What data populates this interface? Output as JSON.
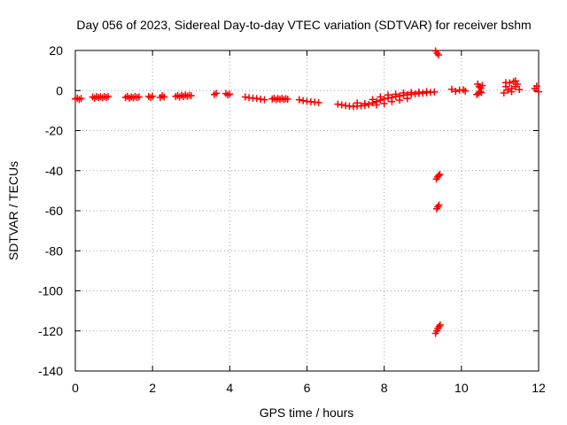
{
  "chart_data": {
    "type": "scatter",
    "title": "Day 056 of 2023, Sidereal Day-to-day VTEC variation (SDTVAR) for receiver bshm",
    "xlabel": "GPS time / hours",
    "ylabel": "SDTVAR / TECUs",
    "xlim": [
      0,
      12
    ],
    "ylim": [
      -140,
      20
    ],
    "xticks": [
      0,
      2,
      4,
      6,
      8,
      10,
      12
    ],
    "yticks": [
      20,
      0,
      -20,
      -40,
      -60,
      -80,
      -100,
      -120,
      -140
    ],
    "xtick_labels": [
      "0",
      "2",
      "4",
      "6",
      "8",
      "10",
      "12"
    ],
    "ytick_labels": [
      "20",
      "0",
      "-20",
      "-40",
      "-60",
      "-80",
      "-100",
      "-120",
      "-140"
    ],
    "grid": true,
    "marker": "+",
    "color": "#ff0000",
    "series": [
      {
        "name": "SDTVAR",
        "points": [
          [
            0.0,
            -4.2
          ],
          [
            0.05,
            -3.8
          ],
          [
            0.1,
            -4.5
          ],
          [
            0.15,
            -4.0
          ],
          [
            0.45,
            -3.2
          ],
          [
            0.5,
            -3.8
          ],
          [
            0.55,
            -3.0
          ],
          [
            0.6,
            -3.5
          ],
          [
            0.65,
            -3.1
          ],
          [
            0.7,
            -3.6
          ],
          [
            0.75,
            -3.0
          ],
          [
            0.8,
            -3.4
          ],
          [
            0.85,
            -3.0
          ],
          [
            1.3,
            -3.5
          ],
          [
            1.35,
            -2.9
          ],
          [
            1.4,
            -3.8
          ],
          [
            1.45,
            -3.2
          ],
          [
            1.5,
            -3.6
          ],
          [
            1.55,
            -3.0
          ],
          [
            1.6,
            -3.5
          ],
          [
            1.65,
            -3.2
          ],
          [
            1.9,
            -3.0
          ],
          [
            1.95,
            -3.5
          ],
          [
            2.0,
            -2.8
          ],
          [
            2.2,
            -3.5
          ],
          [
            2.25,
            -2.6
          ],
          [
            2.3,
            -3.2
          ],
          [
            2.6,
            -3.0
          ],
          [
            2.65,
            -2.5
          ],
          [
            2.7,
            -3.2
          ],
          [
            2.75,
            -2.4
          ],
          [
            2.8,
            -3.0
          ],
          [
            2.85,
            -2.2
          ],
          [
            2.9,
            -2.8
          ],
          [
            2.95,
            -2.4
          ],
          [
            3.0,
            -2.6
          ],
          [
            3.6,
            -2.0
          ],
          [
            3.65,
            -1.4
          ],
          [
            3.9,
            -1.5
          ],
          [
            3.95,
            -2.2
          ],
          [
            4.0,
            -1.8
          ],
          [
            4.4,
            -3.2
          ],
          [
            4.5,
            -3.6
          ],
          [
            4.6,
            -3.8
          ],
          [
            4.7,
            -4.0
          ],
          [
            4.8,
            -4.3
          ],
          [
            4.9,
            -4.6
          ],
          [
            5.1,
            -4.2
          ],
          [
            5.15,
            -3.8
          ],
          [
            5.2,
            -4.6
          ],
          [
            5.25,
            -4.0
          ],
          [
            5.3,
            -4.4
          ],
          [
            5.35,
            -3.9
          ],
          [
            5.4,
            -4.5
          ],
          [
            5.45,
            -4.1
          ],
          [
            5.5,
            -4.3
          ],
          [
            5.8,
            -4.6
          ],
          [
            5.9,
            -5.0
          ],
          [
            6.0,
            -5.4
          ],
          [
            6.1,
            -5.6
          ],
          [
            6.2,
            -5.8
          ],
          [
            6.3,
            -6.0
          ],
          [
            6.8,
            -6.8
          ],
          [
            6.9,
            -7.2
          ],
          [
            7.0,
            -7.5
          ],
          [
            7.1,
            -7.8
          ],
          [
            7.2,
            -8.0
          ],
          [
            7.3,
            -7.8
          ],
          [
            7.4,
            -7.6
          ],
          [
            7.5,
            -7.4
          ],
          [
            7.6,
            -7.0
          ],
          [
            7.7,
            -6.2
          ],
          [
            7.8,
            -5.5
          ],
          [
            7.9,
            -4.8
          ],
          [
            8.0,
            -4.2
          ],
          [
            8.1,
            -3.8
          ],
          [
            8.2,
            -3.4
          ],
          [
            8.3,
            -3.0
          ],
          [
            8.4,
            -2.7
          ],
          [
            8.5,
            -2.4
          ],
          [
            8.6,
            -2.1
          ],
          [
            8.7,
            -1.9
          ],
          [
            8.8,
            -1.7
          ],
          [
            8.9,
            -1.5
          ],
          [
            9.0,
            -1.3
          ],
          [
            9.1,
            -1.1
          ],
          [
            9.2,
            -0.9
          ],
          [
            9.3,
            -0.7
          ],
          [
            7.3,
            -6.2
          ],
          [
            7.5,
            -6.5
          ],
          [
            7.7,
            -4.5
          ],
          [
            7.9,
            -3.2
          ],
          [
            8.1,
            -2.2
          ],
          [
            8.3,
            -1.8
          ],
          [
            8.5,
            -1.2
          ],
          [
            8.7,
            -1.0
          ],
          [
            8.9,
            -0.8
          ],
          [
            9.1,
            -0.5
          ],
          [
            7.8,
            -7.2
          ],
          [
            8.0,
            -6.5
          ],
          [
            8.2,
            -5.5
          ],
          [
            8.4,
            -4.8
          ],
          [
            8.6,
            -4.0
          ],
          [
            9.33,
            19.8
          ],
          [
            9.37,
            18.6
          ],
          [
            9.41,
            17.8
          ],
          [
            9.35,
            -44.2
          ],
          [
            9.38,
            -43.2
          ],
          [
            9.41,
            -42.5
          ],
          [
            9.44,
            -41.8
          ],
          [
            9.36,
            -59.0
          ],
          [
            9.39,
            -58.0
          ],
          [
            9.42,
            -57.2
          ],
          [
            9.33,
            -121.2
          ],
          [
            9.36,
            -120.0
          ],
          [
            9.39,
            -118.8
          ],
          [
            9.42,
            -117.8
          ],
          [
            9.45,
            -117.0
          ],
          [
            9.75,
            0.6
          ],
          [
            9.85,
            -0.4
          ],
          [
            9.95,
            0.2
          ],
          [
            10.05,
            0.4
          ],
          [
            10.1,
            -0.3
          ],
          [
            10.4,
            -2.0
          ],
          [
            10.42,
            3.2
          ],
          [
            10.44,
            -1.4
          ],
          [
            10.46,
            2.0
          ],
          [
            10.48,
            -0.6
          ],
          [
            10.5,
            1.2
          ],
          [
            10.52,
            -1.0
          ],
          [
            10.54,
            2.5
          ],
          [
            11.1,
            -1.2
          ],
          [
            11.15,
            2.0
          ],
          [
            11.2,
            0.2
          ],
          [
            11.25,
            3.8
          ],
          [
            11.3,
            1.0
          ],
          [
            11.35,
            4.4
          ],
          [
            11.4,
            2.0
          ],
          [
            11.45,
            3.2
          ],
          [
            11.5,
            0.5
          ],
          [
            11.15,
            4.0
          ],
          [
            11.3,
            -0.6
          ],
          [
            11.4,
            4.8
          ],
          [
            11.9,
            1.0
          ],
          [
            11.95,
            2.2
          ],
          [
            12.0,
            -0.6
          ]
        ]
      }
    ]
  }
}
